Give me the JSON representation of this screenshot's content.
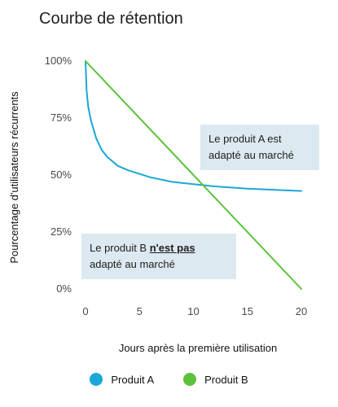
{
  "chart_data": {
    "type": "line",
    "title": "Courbe de rétention",
    "xlabel": "Jours après la première utilisation",
    "ylabel": "Pourcentage d'utilisateurs récurrents",
    "xlim": [
      0,
      20
    ],
    "ylim": [
      0,
      100
    ],
    "x_ticks": [
      0,
      5,
      10,
      15,
      20
    ],
    "y_ticks": [
      0,
      25,
      50,
      75,
      100
    ],
    "y_tick_labels": [
      "0%",
      "25%",
      "50%",
      "75%",
      "100%"
    ],
    "grid": false,
    "series": [
      {
        "name": "Produit A",
        "color": "#1aa7d8",
        "x": [
          0,
          0.1,
          0.25,
          0.5,
          1,
          1.5,
          2,
          3,
          4,
          5,
          6,
          8,
          10,
          12,
          15,
          20
        ],
        "values": [
          100,
          87,
          80,
          74,
          66,
          61,
          58,
          54,
          52,
          50.5,
          49,
          47,
          46,
          45,
          44,
          43
        ]
      },
      {
        "name": "Produit B",
        "color": "#5cc23c",
        "x": [
          0,
          20
        ],
        "values": [
          100,
          0
        ]
      }
    ],
    "annotations": {
      "a_line1": "Le produit A est",
      "a_line2": "adapté au marché",
      "b_pre": "Le produit B ",
      "b_emph": "n'est pas",
      "b_line2": "adapté au marché"
    },
    "legend_position": "bottom"
  }
}
